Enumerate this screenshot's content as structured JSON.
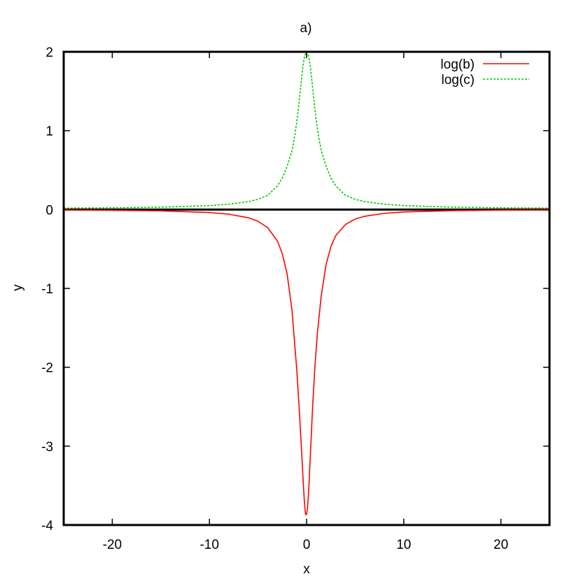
{
  "chart_data": {
    "type": "line",
    "title": "a)",
    "xlabel": "x",
    "ylabel": "y",
    "xlim": [
      -25,
      25
    ],
    "ylim": [
      -4,
      2
    ],
    "xticks": [
      -20,
      -10,
      0,
      10,
      20
    ],
    "yticks": [
      -4,
      -3,
      -2,
      -1,
      0,
      1,
      2
    ],
    "grid": false,
    "legend_position": "top-right",
    "zero_line": true,
    "series": [
      {
        "name": "log(b)",
        "color": "#ff0000",
        "dash": "solid",
        "x": [
          -25,
          -20,
          -15,
          -10,
          -8,
          -6,
          -5,
          -4,
          -3,
          -2.5,
          -2,
          -1.5,
          -1,
          -0.75,
          -0.5,
          -0.35,
          -0.25,
          -0.15,
          -0.1,
          0,
          0.1,
          0.2,
          0.3,
          0.45,
          0.6,
          0.85,
          1.1,
          1.5,
          2,
          2.5,
          3,
          4,
          5,
          6,
          8,
          10,
          15,
          20,
          25
        ],
        "y": [
          -0.006,
          -0.01,
          -0.017,
          -0.038,
          -0.059,
          -0.104,
          -0.149,
          -0.23,
          -0.4,
          -0.56,
          -0.82,
          -1.28,
          -2.05,
          -2.55,
          -3.1,
          -3.45,
          -3.66,
          -3.82,
          -3.87,
          -3.86,
          -3.78,
          -3.6,
          -3.35,
          -2.95,
          -2.55,
          -2.0,
          -1.58,
          -1.1,
          -0.7,
          -0.47,
          -0.33,
          -0.19,
          -0.12,
          -0.085,
          -0.048,
          -0.031,
          -0.014,
          -0.008,
          -0.005
        ]
      },
      {
        "name": "log(c)",
        "color": "#00cc00",
        "dash": "dashed",
        "x": [
          -25,
          -20,
          -15,
          -10,
          -8,
          -6,
          -5,
          -4,
          -3,
          -2.5,
          -2,
          -1.5,
          -1.2,
          -1,
          -0.8,
          -0.6,
          -0.4,
          -0.2,
          0,
          0.2,
          0.4,
          0.6,
          0.8,
          1,
          1.2,
          1.5,
          2,
          2.5,
          3,
          4,
          5,
          6,
          8,
          10,
          15,
          20,
          25
        ],
        "y": [
          0.018,
          0.022,
          0.03,
          0.05,
          0.068,
          0.1,
          0.13,
          0.18,
          0.3,
          0.4,
          0.55,
          0.75,
          0.95,
          1.12,
          1.33,
          1.57,
          1.8,
          1.95,
          2.0,
          1.95,
          1.8,
          1.57,
          1.33,
          1.12,
          0.95,
          0.75,
          0.55,
          0.4,
          0.3,
          0.18,
          0.13,
          0.1,
          0.068,
          0.05,
          0.03,
          0.022,
          0.018
        ]
      }
    ]
  }
}
